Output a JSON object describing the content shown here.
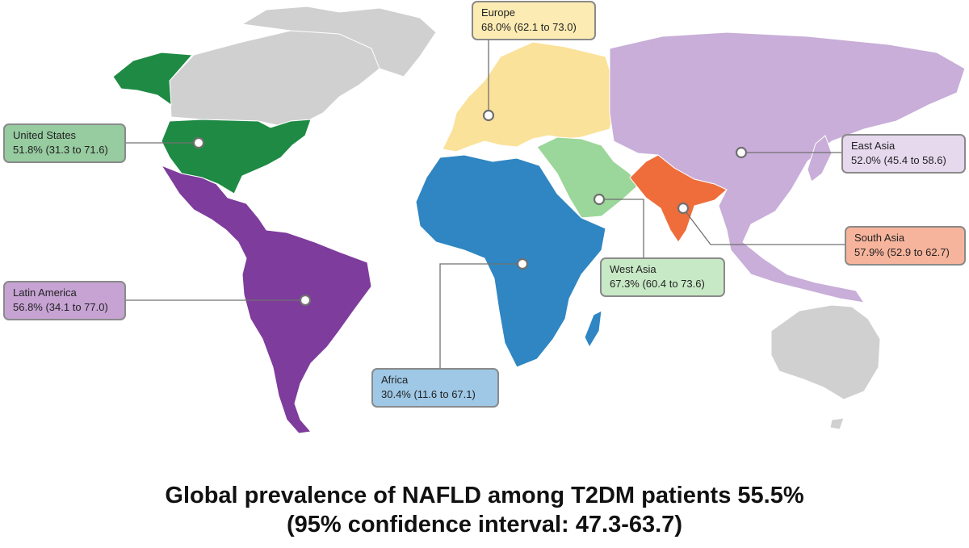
{
  "colors": {
    "united_states": "#1e8a44",
    "latin_america": "#7e3c9c",
    "europe": "#fbe29a",
    "africa": "#2f86c2",
    "west_asia": "#9bd79a",
    "south_asia": "#ef6c3b",
    "east_asia": "#c8aed8",
    "no_data": "#d0d0d0",
    "box_us": "#97cba0",
    "box_latin": "#c6a3d3",
    "box_europe": "#fcebb3",
    "box_africa": "#9ec8e6",
    "box_west_asia": "#c8e9c6",
    "box_south_asia": "#f7b49c",
    "box_east_asia": "#e6d9ee"
  },
  "regions": {
    "united_states": {
      "name": "United States",
      "value": "51.8% (31.3 to 71.6)"
    },
    "latin_america": {
      "name": "Latin America",
      "value": "56.8% (34.1 to 77.0)"
    },
    "europe": {
      "name": "Europe",
      "value": "68.0% (62.1 to 73.0)"
    },
    "africa": {
      "name": "Africa",
      "value": "30.4% (11.6 to 67.1)"
    },
    "west_asia": {
      "name": "West Asia",
      "value": "67.3% (60.4 to 73.6)"
    },
    "south_asia": {
      "name": "South Asia",
      "value": "57.9% (52.9 to 62.7)"
    },
    "east_asia": {
      "name": "East Asia",
      "value": "52.0% (45.4 to 58.6)"
    }
  },
  "caption": {
    "line1": "Global prevalence of NAFLD among T2DM patients 55.5%",
    "line2": "(95% confidence interval: 47.3-63.7)"
  }
}
